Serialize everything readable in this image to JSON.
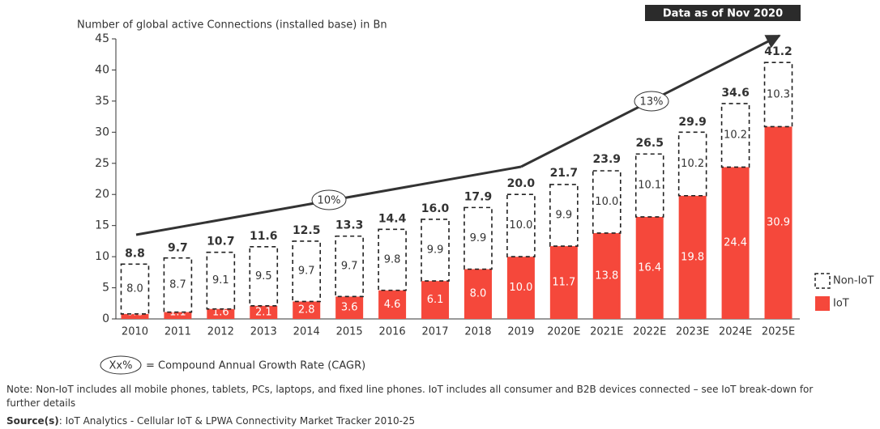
{
  "chart_data": {
    "type": "bar",
    "stacked": true,
    "title": "Number of global active Connections (installed base) in Bn",
    "badge": "Data as of Nov 2020",
    "categories": [
      "2010",
      "2011",
      "2012",
      "2013",
      "2014",
      "2015",
      "2016",
      "2017",
      "2018",
      "2019",
      "2020E",
      "2021E",
      "2022E",
      "2023E",
      "2024E",
      "2025E"
    ],
    "series": [
      {
        "name": "IoT",
        "color": "#f5483b",
        "values": [
          0.8,
          1.1,
          1.6,
          2.1,
          2.8,
          3.6,
          4.6,
          6.1,
          8.0,
          10.0,
          11.7,
          13.8,
          16.4,
          19.8,
          24.4,
          30.9
        ],
        "value_labels": [
          "0.8",
          "1.1",
          "1.6",
          "2.1",
          "2.8",
          "3.6",
          "4.6",
          "6.1",
          "8.0",
          "10.0",
          "11.7",
          "13.8",
          "16.4",
          "19.8",
          "24.4",
          "30.9"
        ]
      },
      {
        "name": "Non-IoT",
        "color": "#222222",
        "values": [
          8.0,
          8.7,
          9.1,
          9.5,
          9.7,
          9.7,
          9.8,
          9.9,
          9.9,
          10.0,
          9.9,
          10.0,
          10.1,
          10.2,
          10.2,
          10.3
        ],
        "value_labels": [
          "8.0",
          "8.7",
          "9.1",
          "9.5",
          "9.7",
          "9.7",
          "9.8",
          "9.9",
          "9.9",
          "10.0",
          "9.9",
          "10.0",
          "10.1",
          "10.2",
          "10.2",
          "10.3"
        ]
      }
    ],
    "totals": {
      "values": [
        8.8,
        9.7,
        10.7,
        11.6,
        12.5,
        13.3,
        14.4,
        16.0,
        17.9,
        20.0,
        21.7,
        23.9,
        26.5,
        29.9,
        34.6,
        41.2
      ],
      "value_labels": [
        "8.8",
        "9.7",
        "10.7",
        "11.6",
        "12.5",
        "13.3",
        "14.4",
        "16.0",
        "17.9",
        "20.0",
        "21.7",
        "23.9",
        "26.5",
        "29.9",
        "34.6",
        "41.2"
      ]
    },
    "annotations": [
      "10%",
      "13%"
    ],
    "cagr_legend": {
      "symbol": "Xx%",
      "text": "= Compound Annual Growth Rate (CAGR)"
    },
    "ylim": [
      0,
      45
    ],
    "yticks": [
      0,
      5,
      10,
      15,
      20,
      25,
      30,
      35,
      40,
      45
    ],
    "note": "Note: Non-IoT includes all mobile phones, tablets, PCs, laptops, and fixed line phones. IoT includes all consumer and B2B devices connected – see IoT break-down for further details",
    "source_label": "Source(s)",
    "source": ": IoT Analytics - Cellular IoT & LPWA Connectivity Market Tracker 2010-25"
  }
}
